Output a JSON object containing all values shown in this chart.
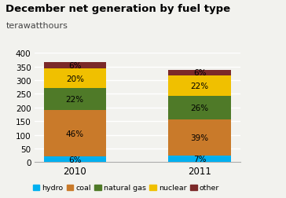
{
  "title": "December net generation by fuel type",
  "subtitle": "terawatthours",
  "years": [
    "2010",
    "2011"
  ],
  "total": [
    365,
    338
  ],
  "segments": {
    "hydro": {
      "pct": [
        6,
        7
      ],
      "color": "#00b0f0"
    },
    "coal": {
      "pct": [
        46,
        39
      ],
      "color": "#c97a2a"
    },
    "natural gas": {
      "pct": [
        22,
        26
      ],
      "color": "#4f7a28"
    },
    "nuclear": {
      "pct": [
        20,
        22
      ],
      "color": "#f0c000"
    },
    "other": {
      "pct": [
        6,
        6
      ],
      "color": "#7b2929"
    }
  },
  "ylim": [
    0,
    400
  ],
  "yticks": [
    0,
    50,
    100,
    150,
    200,
    250,
    300,
    350,
    400
  ],
  "bar_width": 0.5,
  "background_color": "#f2f2ee",
  "legend_order": [
    "hydro",
    "coal",
    "natural gas",
    "nuclear",
    "other"
  ]
}
